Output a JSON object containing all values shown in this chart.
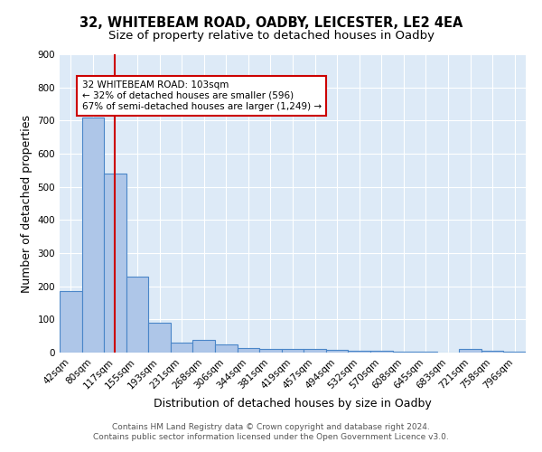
{
  "title": "32, WHITEBEAM ROAD, OADBY, LEICESTER, LE2 4EA",
  "subtitle": "Size of property relative to detached houses in Oadby",
  "xlabel": "Distribution of detached houses by size in Oadby",
  "ylabel": "Number of detached properties",
  "footer_line1": "Contains HM Land Registry data © Crown copyright and database right 2024.",
  "footer_line2": "Contains public sector information licensed under the Open Government Licence v3.0.",
  "categories": [
    "42sqm",
    "80sqm",
    "117sqm",
    "155sqm",
    "193sqm",
    "231sqm",
    "268sqm",
    "306sqm",
    "344sqm",
    "381sqm",
    "419sqm",
    "457sqm",
    "494sqm",
    "532sqm",
    "570sqm",
    "608sqm",
    "645sqm",
    "683sqm",
    "721sqm",
    "758sqm",
    "796sqm"
  ],
  "values": [
    185,
    710,
    540,
    228,
    90,
    30,
    38,
    25,
    15,
    12,
    10,
    10,
    8,
    5,
    5,
    3,
    2,
    0,
    10,
    5,
    2
  ],
  "bar_color": "#aec6e8",
  "bar_edge_color": "#4a86c8",
  "bar_edge_width": 0.8,
  "background_color": "#ddeaf7",
  "grid_color": "#ffffff",
  "red_line_index": 2,
  "red_line_color": "#cc0000",
  "annotation_text_line1": "32 WHITEBEAM ROAD: 103sqm",
  "annotation_text_line2": "← 32% of detached houses are smaller (596)",
  "annotation_text_line3": "67% of semi-detached houses are larger (1,249) →",
  "annotation_box_color": "#cc0000",
  "ylim": [
    0,
    900
  ],
  "yticks": [
    0,
    100,
    200,
    300,
    400,
    500,
    600,
    700,
    800,
    900
  ],
  "title_fontsize": 10.5,
  "subtitle_fontsize": 9.5,
  "axis_label_fontsize": 9,
  "tick_fontsize": 7.5,
  "footer_fontsize": 6.5,
  "ann_fontsize": 7.5
}
